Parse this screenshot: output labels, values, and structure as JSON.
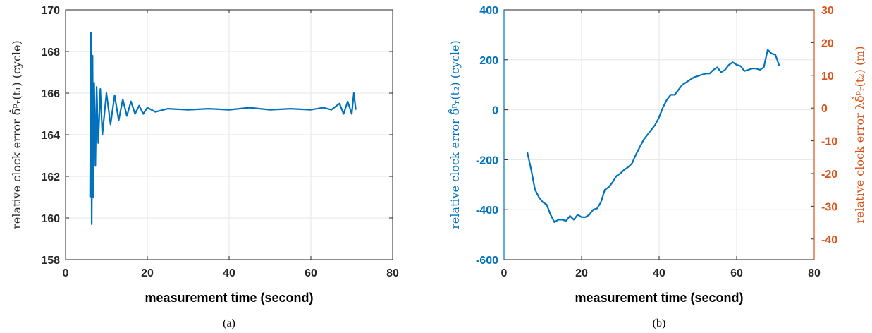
{
  "chart_data": [
    {
      "type": "line",
      "panel": "a",
      "caption": "(a)",
      "xlabel": "measurement time (second)",
      "ylabel": "relative clock error δ̃̂ᵖᵣ(t₁) (cycle)",
      "xlim": [
        0,
        80
      ],
      "ylim": [
        158,
        170
      ],
      "xticks": [
        "0",
        "20",
        "40",
        "60",
        "80"
      ],
      "yticks": [
        "158",
        "160",
        "162",
        "164",
        "166",
        "168",
        "170"
      ],
      "grid": true,
      "series": [
        {
          "color": "#0072BD",
          "x": [
            6.0,
            6.2,
            6.4,
            6.6,
            6.8,
            7.0,
            7.3,
            7.6,
            8.0,
            8.5,
            9.0,
            10,
            11,
            12,
            13,
            14,
            15,
            16,
            17,
            18,
            19,
            20,
            22,
            25,
            30,
            35,
            40,
            45,
            50,
            55,
            60,
            63,
            65,
            67,
            68,
            69,
            70,
            70.5,
            71
          ],
          "y": [
            161.0,
            168.9,
            159.7,
            167.8,
            161.0,
            166.5,
            162.5,
            166.3,
            163.6,
            166.2,
            164.0,
            166.0,
            164.5,
            165.9,
            164.7,
            165.7,
            164.9,
            165.6,
            165.0,
            165.4,
            165.0,
            165.3,
            165.1,
            165.25,
            165.2,
            165.25,
            165.2,
            165.3,
            165.2,
            165.25,
            165.2,
            165.3,
            165.2,
            165.5,
            165.0,
            165.6,
            165.0,
            166.0,
            165.2
          ]
        }
      ]
    },
    {
      "type": "line",
      "panel": "b",
      "caption": "(b)",
      "xlabel": "measurement time (second)",
      "ylabel": "relative clock error δ̃̂ᵖᵣ(t₂) (cycle)",
      "ylabel_right": "relative clock error λδ̃̂ᵖᵣ(t₂) (m)",
      "xlim": [
        0,
        80
      ],
      "ylim": [
        -600,
        400
      ],
      "ylim_right": [
        -46.3,
        30.0
      ],
      "xticks": [
        "0",
        "20",
        "40",
        "60",
        "80"
      ],
      "yticks": [
        "-600",
        "-400",
        "-200",
        "0",
        "200",
        "400"
      ],
      "yticks_right": [
        "-40",
        "-30",
        "-20",
        "-10",
        "0",
        "10",
        "20",
        "30"
      ],
      "grid": true,
      "colors": {
        "left_axis": "#0072BD",
        "right_axis": "#D95319"
      },
      "series": [
        {
          "color": "#0072BD",
          "x": [
            6,
            7,
            8,
            9,
            10,
            11,
            12,
            13,
            14,
            15,
            16,
            17,
            18,
            19,
            20,
            21,
            22,
            23,
            24,
            25,
            26,
            27,
            28,
            29,
            30,
            31,
            32,
            33,
            34,
            35,
            36,
            37,
            38,
            39,
            40,
            41,
            42,
            43,
            44,
            45,
            46,
            47,
            48,
            49,
            50,
            51,
            52,
            53,
            54,
            55,
            56,
            57,
            58,
            59,
            60,
            61,
            62,
            63,
            64,
            65,
            66,
            67,
            68,
            69,
            70,
            71
          ],
          "y": [
            -170,
            -240,
            -320,
            -350,
            -370,
            -380,
            -420,
            -450,
            -440,
            -440,
            -445,
            -425,
            -440,
            -420,
            -430,
            -430,
            -420,
            -400,
            -395,
            -370,
            -320,
            -310,
            -290,
            -265,
            -255,
            -240,
            -230,
            -215,
            -180,
            -150,
            -120,
            -100,
            -80,
            -60,
            -30,
            10,
            40,
            60,
            60,
            80,
            100,
            110,
            120,
            130,
            135,
            140,
            145,
            145,
            160,
            170,
            150,
            160,
            180,
            190,
            180,
            175,
            155,
            160,
            165,
            165,
            160,
            170,
            240,
            225,
            220,
            175
          ]
        }
      ]
    }
  ]
}
